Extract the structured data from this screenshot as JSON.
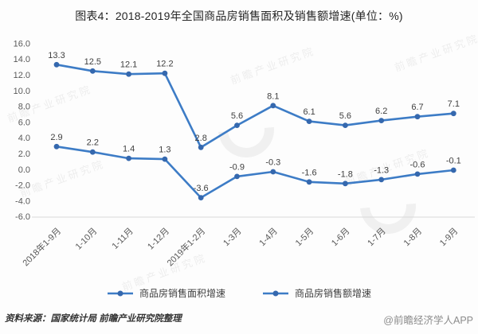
{
  "chart_data": {
    "type": "line",
    "title": "图表4：2018-2019年全国商品房销售面积及销售额增速(单位：%)",
    "unit": "%",
    "categories": [
      "2018年1-9月",
      "1-10月",
      "1-11月",
      "1-12月",
      "2019年1-2月",
      "1-3月",
      "1-4月",
      "1-5月",
      "1-6月",
      "1-7月",
      "1-8月",
      "1-9月"
    ],
    "series": [
      {
        "name": "商品房销售面积增速",
        "values": [
          2.9,
          2.2,
          1.4,
          1.3,
          -3.6,
          -0.9,
          -0.3,
          -1.6,
          -1.8,
          -1.3,
          -0.6,
          -0.1
        ],
        "color": "#3D7CC6",
        "marker_color": "#3568AE"
      },
      {
        "name": "商品房销售额增速",
        "values": [
          13.3,
          12.5,
          12.1,
          12.2,
          2.8,
          5.6,
          8.1,
          6.1,
          5.6,
          6.2,
          6.7,
          7.1
        ],
        "color": "#3D7CC6",
        "marker_color": "#3568AE"
      }
    ],
    "xlabel": "",
    "ylabel": "",
    "ylim": [
      -6.0,
      16.0
    ],
    "ytick_step": 2.0,
    "grid": false,
    "legend_position": "bottom",
    "data_labels": true
  },
  "colors": {
    "point_label": "#404040",
    "tick_label": "#595959",
    "axis_line": "#D9D9D9"
  },
  "watermark": {
    "text": "前瞻产业研究院"
  },
  "footer": {
    "source": "资料来源：国家统计局 前瞻产业研究院整理",
    "brand": "@前瞻经济学人APP"
  }
}
